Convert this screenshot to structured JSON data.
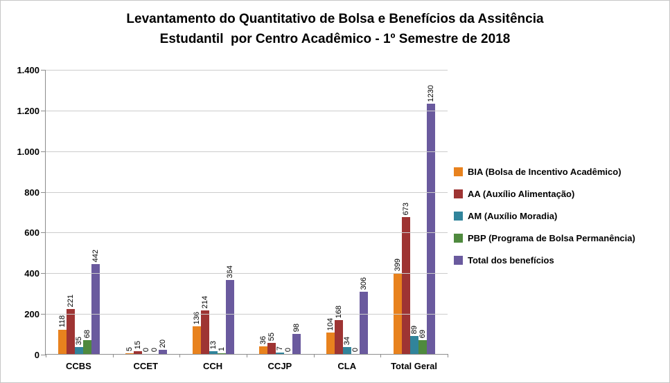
{
  "title": {
    "line1": "Levantamento do Quantitativo de Bolsa e Benefícios da Assitência",
    "line2": "Estudantil  por Centro Acadêmico - 1º Semestre de 2018"
  },
  "chart_data": {
    "type": "bar",
    "title": "Levantamento do Quantitativo de Bolsa e Benefícios da Assitência Estudantil por Centro Acadêmico - 1º Semestre de 2018",
    "categories": [
      "CCBS",
      "CCET",
      "CCH",
      "CCJP",
      "CLA",
      "Total Geral"
    ],
    "series": [
      {
        "name": "BIA (Bolsa de Incentivo Acadêmico)",
        "color": "#E8821E",
        "values": [
          118,
          5,
          136,
          36,
          104,
          399
        ]
      },
      {
        "name": "AA (Auxílio Alimentação)",
        "color": "#9E3433",
        "values": [
          221,
          15,
          214,
          55,
          168,
          673
        ]
      },
      {
        "name": "AM (Auxílio Moradia)",
        "color": "#31849B",
        "values": [
          35,
          0,
          13,
          7,
          34,
          89
        ]
      },
      {
        "name": "PBP (Programa de Bolsa Permanência)",
        "color": "#4F8A3E",
        "values": [
          68,
          0,
          1,
          0,
          0,
          69
        ]
      },
      {
        "name": "Total dos benefícios",
        "color": "#6A5A9E",
        "values": [
          442,
          20,
          364,
          98,
          306,
          1230
        ]
      }
    ],
    "ylim": [
      0,
      1400
    ],
    "ytick_step": 200,
    "ytick_labels": [
      "0",
      "200",
      "400",
      "600",
      "800",
      "1.000",
      "1.200",
      "1.400"
    ],
    "grid": "horizontal",
    "legend_position": "right",
    "data_labels": "rotated-vertical",
    "xlabel": "",
    "ylabel": ""
  }
}
